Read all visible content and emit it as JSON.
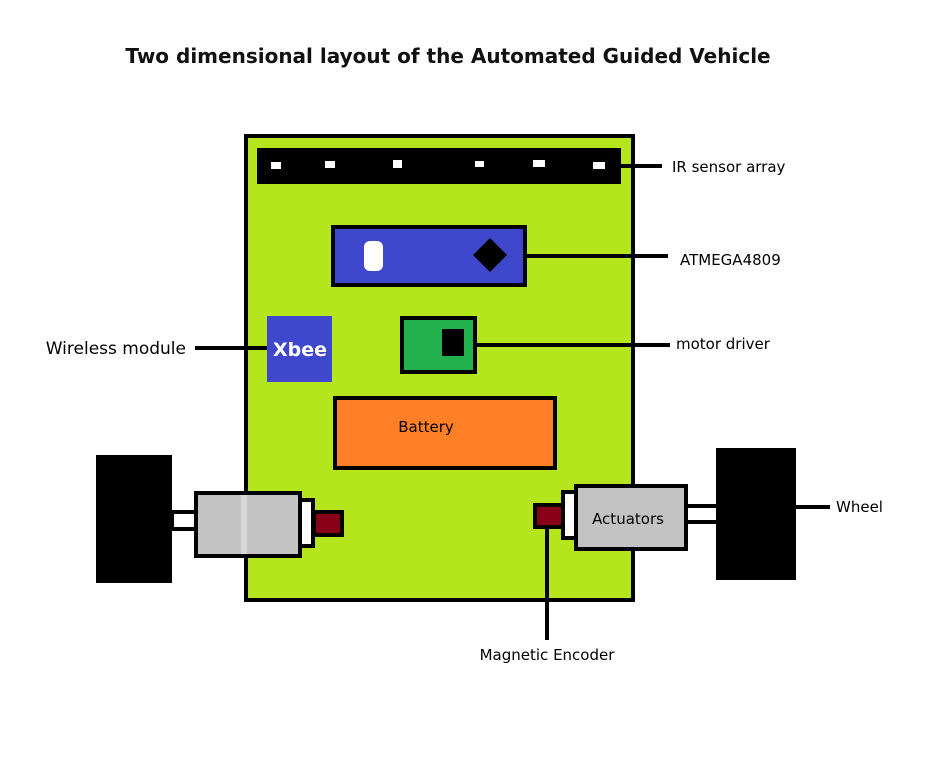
{
  "title": "Two dimensional layout of the Automated Guided Vehicle",
  "labels": {
    "ir_sensor_array": "IR sensor array",
    "atmega": "ATMEGA4809",
    "wireless_module": "Wireless module",
    "motor_driver": "motor driver",
    "wheel": "Wheel",
    "magnetic_encoder": "Magnetic Encoder"
  },
  "components": {
    "xbee": "Xbee",
    "battery": "Battery",
    "actuators": "Actuators"
  },
  "colors": {
    "chassis": "#b5e61d",
    "microcontroller": "#3f48cc",
    "xbee": "#3f48cc",
    "motor_driver": "#22b14c",
    "battery": "#ff7f27",
    "actuator": "#c3c3c3",
    "encoder": "#880015",
    "wheel": "#000000"
  }
}
